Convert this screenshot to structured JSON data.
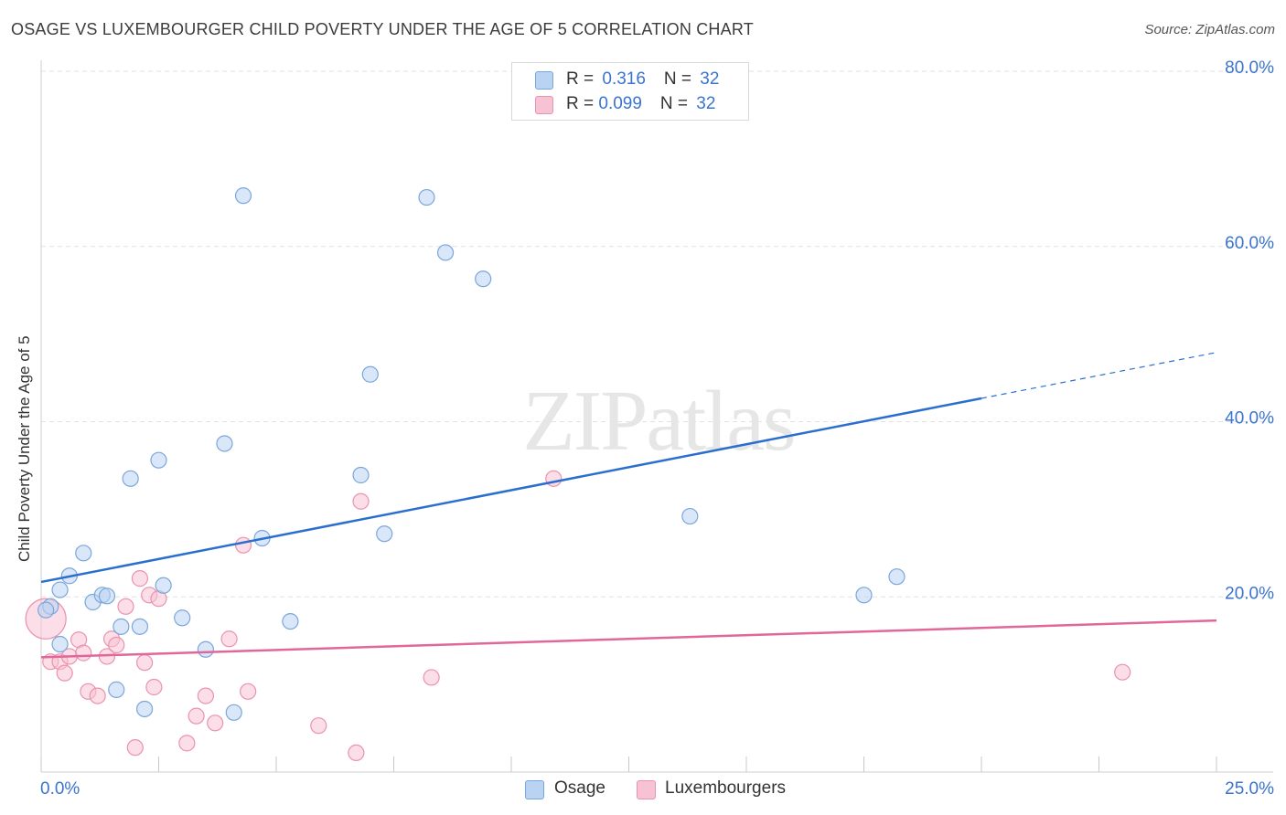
{
  "title": "OSAGE VS LUXEMBOURGER CHILD POVERTY UNDER THE AGE OF 5 CORRELATION CHART",
  "source": "Source: ZipAtlas.com",
  "watermark": "ZIPatlas",
  "legend": {
    "osage": {
      "r_label": "R = ",
      "r_value": "0.316",
      "n_label": "N = ",
      "n_value": "32"
    },
    "lux": {
      "r_label": "R = ",
      "r_value": "0.099",
      "n_label": "N = ",
      "n_value": "32"
    }
  },
  "bottom_legend": {
    "osage": "Osage",
    "lux": "Luxembourgers"
  },
  "colors": {
    "osage_fill": "#b9d3f3",
    "osage_stroke": "#7ba6dc",
    "osage_line": "#2a6fcf",
    "lux_fill": "#f7c3d4",
    "lux_stroke": "#ea93ad",
    "lux_line": "#e0679a",
    "tick_label": "#3a74d0",
    "grid": "#e2e2e2"
  },
  "chart_data": {
    "type": "scatter",
    "title": "OSAGE VS LUXEMBOURGER CHILD POVERTY UNDER THE AGE OF 5 CORRELATION CHART",
    "xlabel": "",
    "ylabel": "Child Poverty Under the Age of 5",
    "xlim": [
      0,
      25
    ],
    "ylim": [
      0,
      80
    ],
    "x_tick_labels": [
      "0.0%",
      "25.0%"
    ],
    "y_ticks": [
      20,
      40,
      60,
      80
    ],
    "y_tick_labels": [
      "20.0%",
      "40.0%",
      "60.0%",
      "80.0%"
    ],
    "grid": true,
    "legend_position": "top-center",
    "series": [
      {
        "name": "Osage",
        "r": 0.316,
        "n": 32,
        "trend": {
          "x0": 0,
          "y0": 21.7,
          "x1": 25,
          "y1": 47.9,
          "solid_until_x": 20
        },
        "points": [
          [
            0.2,
            18.9
          ],
          [
            0.4,
            14.6
          ],
          [
            0.4,
            20.8
          ],
          [
            0.6,
            22.4
          ],
          [
            0.9,
            25.0
          ],
          [
            1.1,
            19.4
          ],
          [
            1.3,
            20.2
          ],
          [
            1.4,
            20.1
          ],
          [
            1.6,
            9.4
          ],
          [
            1.7,
            16.6
          ],
          [
            1.9,
            33.5
          ],
          [
            2.1,
            16.6
          ],
          [
            2.2,
            7.2
          ],
          [
            2.5,
            35.6
          ],
          [
            2.6,
            21.3
          ],
          [
            3.0,
            17.6
          ],
          [
            3.5,
            14.0
          ],
          [
            3.9,
            37.5
          ],
          [
            4.1,
            6.8
          ],
          [
            4.3,
            65.8
          ],
          [
            4.7,
            26.7
          ],
          [
            5.3,
            17.2
          ],
          [
            6.8,
            33.9
          ],
          [
            7.0,
            45.4
          ],
          [
            7.3,
            27.2
          ],
          [
            8.2,
            65.6
          ],
          [
            8.6,
            59.3
          ],
          [
            9.4,
            56.3
          ],
          [
            13.8,
            29.2
          ],
          [
            17.5,
            20.2
          ],
          [
            18.2,
            22.3
          ],
          [
            0.1,
            18.5
          ]
        ]
      },
      {
        "name": "Luxembourgers",
        "r": 0.099,
        "n": 32,
        "trend": {
          "x0": 0,
          "y0": 13.1,
          "x1": 25,
          "y1": 17.3
        },
        "points": [
          [
            0.1,
            17.5
          ],
          [
            0.2,
            12.6
          ],
          [
            0.4,
            12.6
          ],
          [
            0.5,
            11.3
          ],
          [
            0.6,
            13.2
          ],
          [
            0.8,
            15.1
          ],
          [
            0.9,
            13.6
          ],
          [
            1.0,
            9.2
          ],
          [
            1.2,
            8.7
          ],
          [
            1.4,
            13.2
          ],
          [
            1.5,
            15.2
          ],
          [
            1.6,
            14.5
          ],
          [
            1.8,
            18.9
          ],
          [
            2.0,
            2.8
          ],
          [
            2.1,
            22.1
          ],
          [
            2.2,
            12.5
          ],
          [
            2.3,
            20.2
          ],
          [
            2.4,
            9.7
          ],
          [
            2.5,
            19.8
          ],
          [
            3.1,
            3.3
          ],
          [
            3.3,
            6.4
          ],
          [
            3.5,
            8.7
          ],
          [
            3.7,
            5.6
          ],
          [
            4.0,
            15.2
          ],
          [
            4.3,
            25.9
          ],
          [
            4.4,
            9.2
          ],
          [
            5.9,
            5.3
          ],
          [
            6.7,
            2.2
          ],
          [
            6.8,
            30.9
          ],
          [
            8.3,
            10.8
          ],
          [
            10.9,
            33.5
          ],
          [
            23.0,
            11.4
          ]
        ]
      }
    ]
  }
}
